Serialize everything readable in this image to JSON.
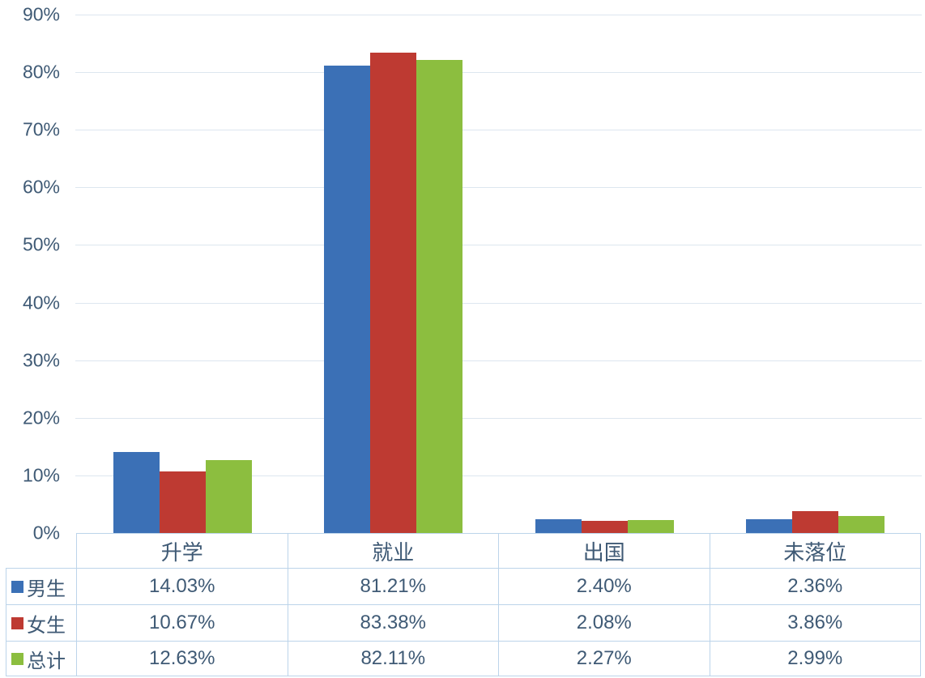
{
  "chart_data": {
    "type": "bar",
    "title": "",
    "categories": [
      "升学",
      "就业",
      "出国",
      "未落位"
    ],
    "series": [
      {
        "name": "男生",
        "color": "#3b70b6",
        "values": [
          14.03,
          81.21,
          2.4,
          2.36
        ],
        "labels": [
          "14.03%",
          "81.21%",
          "2.40%",
          "2.36%"
        ]
      },
      {
        "name": "女生",
        "color": "#be3a32",
        "values": [
          10.67,
          83.38,
          2.08,
          3.86
        ],
        "labels": [
          "10.67%",
          "83.38%",
          "2.08%",
          "3.86%"
        ]
      },
      {
        "name": "总计",
        "color": "#8cbe3f",
        "values": [
          12.63,
          82.11,
          2.27,
          2.99
        ],
        "labels": [
          "12.63%",
          "82.11%",
          "2.27%",
          "2.99%"
        ]
      }
    ],
    "xlabel": "",
    "ylabel": "",
    "ylim": [
      0,
      90
    ],
    "ytick_step": 10,
    "grid": true,
    "legend_position": "table-left"
  },
  "y_axis": {
    "ticks": [
      "90%",
      "80%",
      "70%",
      "60%",
      "50%",
      "40%",
      "30%",
      "20%",
      "10%",
      "0%"
    ]
  },
  "colors": {
    "series_blue": "#3b70b6",
    "series_red": "#be3a32",
    "series_green": "#8cbe3f",
    "axis_text": "#3f5a75",
    "table_border": "#bcd4ea",
    "gridline": "#dde6ef",
    "background": "#ffffff"
  }
}
